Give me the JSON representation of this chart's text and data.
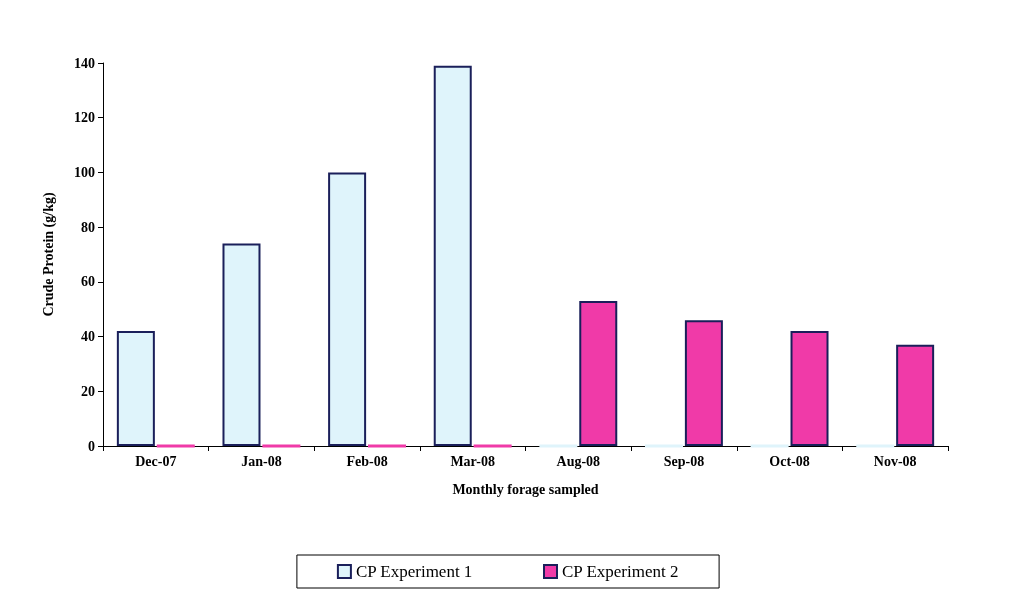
{
  "chart_data": {
    "type": "bar",
    "xlabel": "Monthly forage sampled",
    "ylabel": "Crude Protein (g/kg)",
    "categories": [
      "Dec-07",
      "Jan-08",
      "Feb-08",
      "Mar-08",
      "Aug-08",
      "Sep-08",
      "Oct-08",
      "Nov-08"
    ],
    "series": [
      {
        "name": "CP Experiment 1",
        "color": "#dff4fb",
        "values": [
          42,
          74,
          100,
          139,
          0,
          0,
          0,
          0
        ]
      },
      {
        "name": "CP Experiment 2",
        "color": "#f03aa8",
        "values": [
          0,
          0,
          0,
          0,
          53,
          46,
          42,
          37
        ]
      }
    ],
    "ylim": [
      0,
      140
    ],
    "yticks": [
      0,
      20,
      40,
      60,
      80,
      100,
      120,
      140
    ],
    "grid": false,
    "legend": "bottom"
  }
}
